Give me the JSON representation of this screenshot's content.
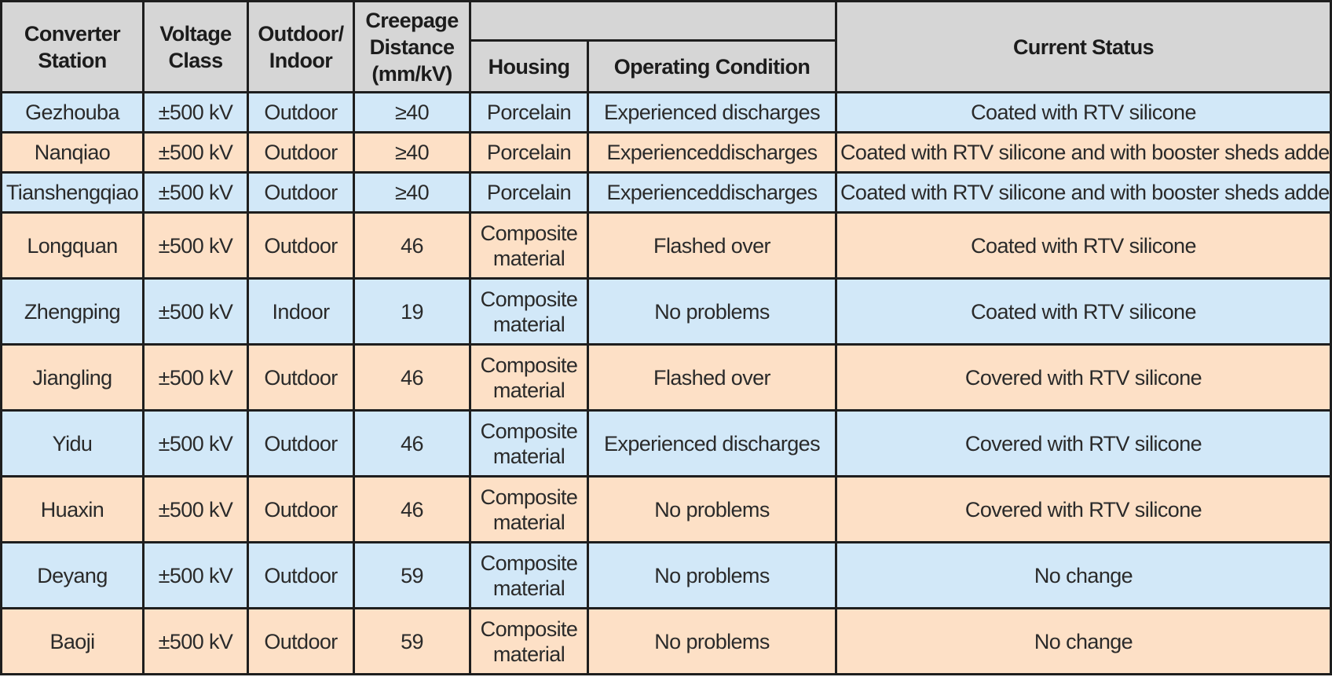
{
  "table": {
    "headers": {
      "converter_station": "Converter Station",
      "voltage_class": "Voltage Class",
      "outdoor_indoor": "Outdoor/ Indoor",
      "creepage_distance": "Creepage Distance (mm/kV)",
      "group_blank": "",
      "housing": "Housing",
      "operating_condition": "Operating Condition",
      "current_status": "Current Status"
    },
    "rows": [
      {
        "station": "Gezhouba",
        "voltage": "±500 kV",
        "location": "Outdoor",
        "creepage": "≥40",
        "housing": "Porcelain",
        "condition": "Experienced discharges",
        "status": "Coated with RTV silicone"
      },
      {
        "station": "Nanqiao",
        "voltage": "±500 kV",
        "location": "Outdoor",
        "creepage": "≥40",
        "housing": "Porcelain",
        "condition": "Experienceddischarges",
        "status": "Coated with RTV silicone and with booster sheds added"
      },
      {
        "station": "Tianshengqiao",
        "voltage": "±500 kV",
        "location": "Outdoor",
        "creepage": "≥40",
        "housing": "Porcelain",
        "condition": "Experienceddischarges",
        "status": "Coated with RTV silicone and with booster sheds added"
      },
      {
        "station": "Longquan",
        "voltage": "±500 kV",
        "location": "Outdoor",
        "creepage": "46",
        "housing": "Composite material",
        "condition": "Flashed over",
        "status": "Coated with RTV silicone"
      },
      {
        "station": "Zhengping",
        "voltage": "±500 kV",
        "location": "Indoor",
        "creepage": "19",
        "housing": "Composite material",
        "condition": "No problems",
        "status": "Coated with RTV silicone"
      },
      {
        "station": "Jiangling",
        "voltage": "±500 kV",
        "location": "Outdoor",
        "creepage": "46",
        "housing": "Composite material",
        "condition": "Flashed over",
        "status": "Covered with RTV silicone"
      },
      {
        "station": "Yidu",
        "voltage": "±500 kV",
        "location": "Outdoor",
        "creepage": "46",
        "housing": "Composite material",
        "condition": "Experienced discharges",
        "status": "Covered with RTV silicone"
      },
      {
        "station": "Huaxin",
        "voltage": "±500 kV",
        "location": "Outdoor",
        "creepage": "46",
        "housing": "Composite material",
        "condition": "No problems",
        "status": "Covered with RTV silicone"
      },
      {
        "station": "Deyang",
        "voltage": "±500 kV",
        "location": "Outdoor",
        "creepage": "59",
        "housing": "Composite material",
        "condition": "No problems",
        "status": "No change"
      },
      {
        "station": "Baoji",
        "voltage": "±500 kV",
        "location": "Outdoor",
        "creepage": "59",
        "housing": "Composite material",
        "condition": "No problems",
        "status": "No change"
      }
    ]
  },
  "colors": {
    "header_bg": "#d6d6d6",
    "row_blue": "#d2e8f8",
    "row_peach": "#fde0c6",
    "border": "#1e1e1e"
  }
}
